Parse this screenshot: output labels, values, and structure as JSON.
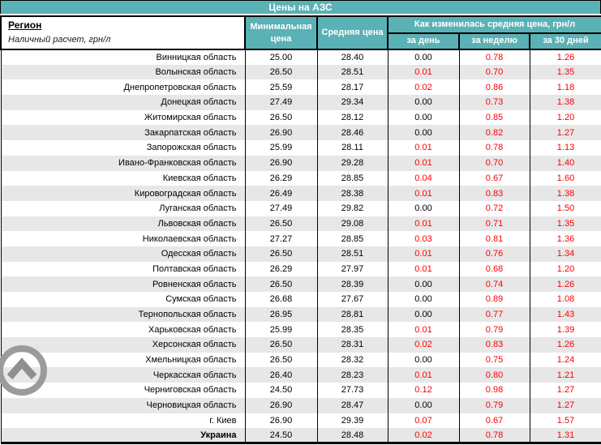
{
  "title": "Цены на АЗС",
  "header": {
    "region_label": "Регион",
    "region_sub": "Наличный расчет, грн/л",
    "col_min": "Минимальная цена",
    "col_avg": "Средняя цена",
    "col_change_group": "Как изменилась средняя цена, грн/л",
    "col_day": "за день",
    "col_week": "за неделю",
    "col_month": "за 30 дней"
  },
  "colors": {
    "header_teal": "#5AB1B6",
    "row_stripe": "#E7E7E7",
    "change_positive": "#FE0000",
    "border": "#000000"
  },
  "icons": {
    "scroll_to_top": "chevron-up-circle"
  },
  "table": {
    "rows": [
      {
        "region": "Винницкая область",
        "min": "25.00",
        "avg": "28.40",
        "day": "0.00",
        "week": "0.78",
        "month": "1.26"
      },
      {
        "region": "Волынская область",
        "min": "26.50",
        "avg": "28.51",
        "day": "0.01",
        "week": "0.70",
        "month": "1.35"
      },
      {
        "region": "Днепропетровская область",
        "min": "25.59",
        "avg": "28.17",
        "day": "0.02",
        "week": "0.86",
        "month": "1.18"
      },
      {
        "region": "Донецкая область",
        "min": "27.49",
        "avg": "29.34",
        "day": "0.00",
        "week": "0.73",
        "month": "1.38"
      },
      {
        "region": "Житомирская область",
        "min": "26.50",
        "avg": "28.12",
        "day": "0.00",
        "week": "0.85",
        "month": "1.20"
      },
      {
        "region": "Закарпатская область",
        "min": "26.90",
        "avg": "28.46",
        "day": "0.00",
        "week": "0.82",
        "month": "1.27"
      },
      {
        "region": "Запорожская область",
        "min": "25.99",
        "avg": "28.11",
        "day": "0.01",
        "week": "0.78",
        "month": "1.13"
      },
      {
        "region": "Ивано-Франковская область",
        "min": "26.90",
        "avg": "29.28",
        "day": "0.01",
        "week": "0.70",
        "month": "1.40"
      },
      {
        "region": "Киевская область",
        "min": "26.29",
        "avg": "28.85",
        "day": "0.04",
        "week": "0.67",
        "month": "1.60"
      },
      {
        "region": "Кировоградская область",
        "min": "26.49",
        "avg": "28.38",
        "day": "0.01",
        "week": "0.83",
        "month": "1.38"
      },
      {
        "region": "Луганская область",
        "min": "27.49",
        "avg": "29.82",
        "day": "0.00",
        "week": "0.72",
        "month": "1.50"
      },
      {
        "region": "Львовская область",
        "min": "26.50",
        "avg": "29.08",
        "day": "0.01",
        "week": "0.71",
        "month": "1.35"
      },
      {
        "region": "Николаевская область",
        "min": "27.27",
        "avg": "28.85",
        "day": "0.03",
        "week": "0.81",
        "month": "1.36"
      },
      {
        "region": "Одесская область",
        "min": "26.50",
        "avg": "28.51",
        "day": "0.01",
        "week": "0.76",
        "month": "1.34"
      },
      {
        "region": "Полтавская область",
        "min": "26.29",
        "avg": "27.97",
        "day": "0.01",
        "week": "0.68",
        "month": "1.20"
      },
      {
        "region": "Ровненская область",
        "min": "26.50",
        "avg": "28.39",
        "day": "0.00",
        "week": "0.74",
        "month": "1.26"
      },
      {
        "region": "Сумская область",
        "min": "26.68",
        "avg": "27.67",
        "day": "0.00",
        "week": "0.89",
        "month": "1.08"
      },
      {
        "region": "Тернопольская область",
        "min": "26.95",
        "avg": "28.81",
        "day": "0.00",
        "week": "0.77",
        "month": "1.43"
      },
      {
        "region": "Харьковская область",
        "min": "25.99",
        "avg": "28.35",
        "day": "0.01",
        "week": "0.79",
        "month": "1.39"
      },
      {
        "region": "Херсонская область",
        "min": "26.50",
        "avg": "28.31",
        "day": "0.02",
        "week": "0.83",
        "month": "1.26"
      },
      {
        "region": "Хмельницкая область",
        "min": "26.50",
        "avg": "28.32",
        "day": "0.00",
        "week": "0.75",
        "month": "1.24"
      },
      {
        "region": "Черкасская область",
        "min": "26.40",
        "avg": "28.23",
        "day": "0.01",
        "week": "0.80",
        "month": "1.21"
      },
      {
        "region": "Черниговская область",
        "min": "24.50",
        "avg": "27.73",
        "day": "0.12",
        "week": "0.98",
        "month": "1.27"
      },
      {
        "region": "Черновицкая область",
        "min": "26.90",
        "avg": "28.47",
        "day": "0.00",
        "week": "0.79",
        "month": "1.27"
      },
      {
        "region": "г. Киев",
        "min": "26.90",
        "avg": "29.39",
        "day": "0.07",
        "week": "0.67",
        "month": "1.57"
      },
      {
        "region": "Украина",
        "min": "24.50",
        "avg": "28.48",
        "day": "0.02",
        "week": "0.78",
        "month": "1.31",
        "bold": true
      }
    ]
  }
}
